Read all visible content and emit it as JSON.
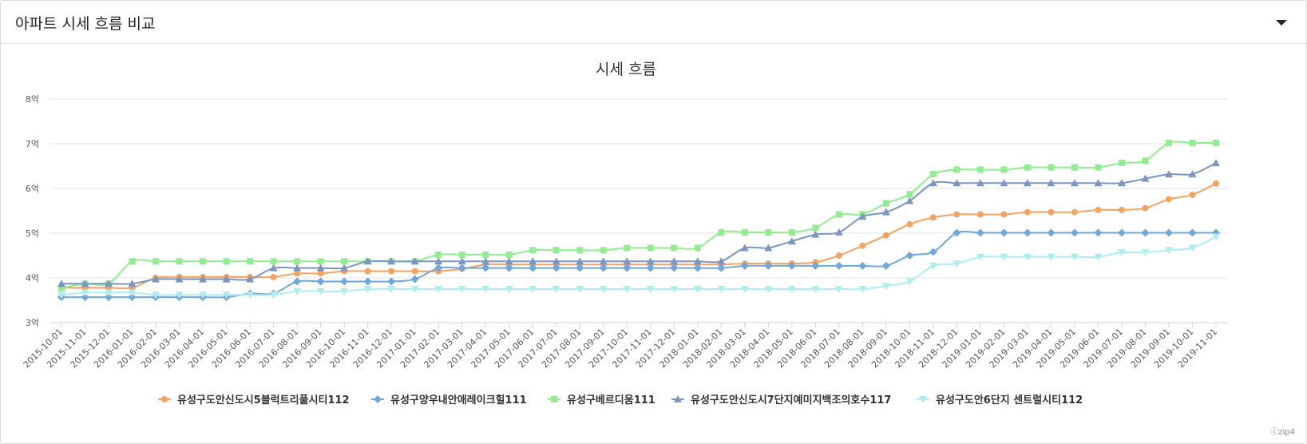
{
  "header": {
    "title": "아파트 시세 흐름 비교"
  },
  "credit": "ⓒzip4",
  "chart_data": {
    "type": "line",
    "title": "시세 흐름",
    "yticks": [
      "3억",
      "4억",
      "5억",
      "6억",
      "7억",
      "8억"
    ],
    "ylim": [
      3,
      8
    ],
    "grid": true,
    "legend_position": "bottom",
    "categories": [
      "2015-10-01",
      "2015-11-01",
      "2015-12-01",
      "2016-01-01",
      "2016-02-01",
      "2016-03-01",
      "2016-04-01",
      "2016-05-01",
      "2016-06-01",
      "2016-07-01",
      "2016-08-01",
      "2016-09-01",
      "2016-10-01",
      "2016-11-01",
      "2016-12-01",
      "2017-01-01",
      "2017-02-01",
      "2017-03-01",
      "2017-04-01",
      "2017-05-01",
      "2017-06-01",
      "2017-07-01",
      "2017-08-01",
      "2017-09-01",
      "2017-10-01",
      "2017-11-01",
      "2017-12-01",
      "2018-01-01",
      "2018-02-01",
      "2018-03-01",
      "2018-04-01",
      "2018-05-01",
      "2018-06-01",
      "2018-07-01",
      "2018-08-01",
      "2018-09-01",
      "2018-10-01",
      "2018-11-01",
      "2018-12-01",
      "2019-01-01",
      "2019-02-01",
      "2019-03-01",
      "2019-04-01",
      "2019-05-01",
      "2019-06-01",
      "2019-07-01",
      "2019-08-01",
      "2019-09-01",
      "2019-10-01",
      "2019-11-01"
    ],
    "series": [
      {
        "name": "유성구도안신도시5블럭트리풀시티112",
        "color": "#f4a460",
        "marker": "circle",
        "values": [
          3.78,
          3.78,
          3.78,
          3.78,
          4.0,
          4.02,
          4.02,
          4.02,
          4.02,
          4.02,
          4.1,
          4.1,
          4.15,
          4.15,
          4.15,
          4.15,
          4.15,
          4.2,
          4.3,
          4.3,
          4.3,
          4.3,
          4.3,
          4.3,
          4.3,
          4.3,
          4.3,
          4.3,
          4.3,
          4.32,
          4.32,
          4.32,
          4.35,
          4.5,
          4.72,
          4.95,
          5.2,
          5.35,
          5.42,
          5.42,
          5.42,
          5.47,
          5.47,
          5.47,
          5.52,
          5.52,
          5.56,
          5.76,
          5.86,
          6.11
        ]
      },
      {
        "name": "유성구양우내안애레이크힐111",
        "color": "#6fa8dc",
        "marker": "diamond",
        "values": [
          3.57,
          3.57,
          3.57,
          3.57,
          3.57,
          3.57,
          3.57,
          3.57,
          3.65,
          3.65,
          3.92,
          3.92,
          3.92,
          3.92,
          3.92,
          3.97,
          4.22,
          4.22,
          4.22,
          4.22,
          4.22,
          4.22,
          4.22,
          4.22,
          4.22,
          4.22,
          4.22,
          4.22,
          4.22,
          4.27,
          4.27,
          4.27,
          4.27,
          4.27,
          4.27,
          4.27,
          4.5,
          4.58,
          5.01,
          5.01,
          5.01,
          5.01,
          5.01,
          5.01,
          5.01,
          5.01,
          5.01,
          5.01,
          5.01,
          5.01
        ]
      },
      {
        "name": "유성구베르디움111",
        "color": "#90ee90",
        "marker": "square",
        "values": [
          3.77,
          3.87,
          3.87,
          4.37,
          4.37,
          4.37,
          4.37,
          4.37,
          4.37,
          4.37,
          4.37,
          4.37,
          4.37,
          4.37,
          4.37,
          4.37,
          4.52,
          4.52,
          4.52,
          4.52,
          4.62,
          4.62,
          4.62,
          4.62,
          4.67,
          4.67,
          4.67,
          4.67,
          5.02,
          5.02,
          5.02,
          5.02,
          5.12,
          5.42,
          5.42,
          5.67,
          5.87,
          6.32,
          6.42,
          6.42,
          6.42,
          6.47,
          6.47,
          6.47,
          6.47,
          6.57,
          6.62,
          7.02,
          7.02,
          7.02
        ]
      },
      {
        "name": "유성구도안신도시7단지예미지백조의호수117",
        "color": "#7b96c2",
        "marker": "triangle",
        "values": [
          3.87,
          3.87,
          3.87,
          3.87,
          3.97,
          3.97,
          3.97,
          3.97,
          3.97,
          4.22,
          4.22,
          4.22,
          4.22,
          4.37,
          4.37,
          4.37,
          4.37,
          4.37,
          4.37,
          4.37,
          4.37,
          4.37,
          4.37,
          4.37,
          4.37,
          4.37,
          4.37,
          4.37,
          4.37,
          4.67,
          4.67,
          4.82,
          4.97,
          5.02,
          5.37,
          5.47,
          5.72,
          6.12,
          6.12,
          6.12,
          6.12,
          6.12,
          6.12,
          6.12,
          6.12,
          6.12,
          6.22,
          6.32,
          6.32,
          6.57
        ]
      },
      {
        "name": "유성구도안6단지 센트럴시티112",
        "color": "#aeeef0",
        "marker": "triangle-down",
        "values": [
          3.62,
          3.67,
          3.67,
          3.67,
          3.62,
          3.62,
          3.62,
          3.62,
          3.62,
          3.62,
          3.7,
          3.7,
          3.7,
          3.75,
          3.75,
          3.75,
          3.75,
          3.75,
          3.75,
          3.75,
          3.75,
          3.75,
          3.75,
          3.75,
          3.75,
          3.75,
          3.75,
          3.75,
          3.75,
          3.75,
          3.75,
          3.75,
          3.75,
          3.75,
          3.75,
          3.82,
          3.92,
          4.27,
          4.32,
          4.47,
          4.47,
          4.47,
          4.47,
          4.47,
          4.47,
          4.57,
          4.57,
          4.62,
          4.67,
          4.92
        ]
      }
    ]
  }
}
